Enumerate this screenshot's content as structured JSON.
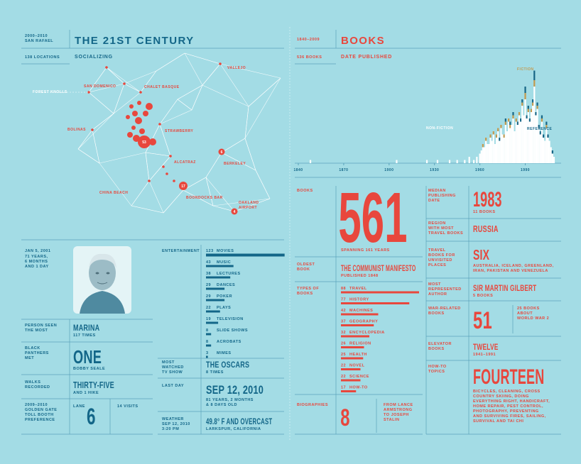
{
  "header_left": {
    "dates": "2000–2010",
    "place": "SAN RAFAEL",
    "title": "THE 21ST CENTURY"
  },
  "map": {
    "locations": "138 LOCATIONS",
    "title": "SOCIALIZING",
    "places": [
      [
        "VALLEJO"
      ],
      [
        "SAN DOMENICO"
      ],
      [
        "CHALET BASQUE"
      ],
      [
        "FOREST KNOLLS"
      ],
      [
        "BOLINAS"
      ],
      [
        "STRAWBERRY"
      ],
      [
        "ALCATRAZ"
      ],
      [
        "BERKELEY"
      ],
      [
        "CHINA BEACH"
      ],
      [
        "BOONDOCKS BAR"
      ],
      [
        "OAKLAND",
        "AIRPORT"
      ]
    ],
    "bubbles": [
      53,
      17,
      6,
      4
    ]
  },
  "profile": {
    "date": "JAN 5, 2001",
    "age": [
      "71 YEARS,",
      "6 MONTHS",
      "AND 1 DAY"
    ]
  },
  "person": {
    "label": [
      "PERSON SEEN",
      "THE MOST"
    ],
    "value": "MARINA",
    "detail": "117 TIMES"
  },
  "panthers": {
    "label": [
      "BLACK",
      "PANTHERS",
      "MET"
    ],
    "value": "ONE",
    "detail": "BOBBY SEALE"
  },
  "walks": {
    "label": [
      "WALKS",
      "RECORDED"
    ],
    "value": "THIRTY-FIVE",
    "detail": "AND 1 HIKE"
  },
  "toll": {
    "label": [
      "2009–2010",
      "GOLDEN GATE",
      "TOLL BOOTH",
      "PREFERENCE"
    ],
    "lane_label": "LANE",
    "value": 6,
    "detail": "14 VISITS"
  },
  "entertainment": {
    "label": "ENTERTAINMENT",
    "items": [
      {
        "count": 123,
        "name": "MOVIES"
      },
      {
        "count": 43,
        "name": "MUSIC"
      },
      {
        "count": 38,
        "name": "LECTURES"
      },
      {
        "count": 29,
        "name": "DANCES"
      },
      {
        "count": 29,
        "name": "POKER"
      },
      {
        "count": 22,
        "name": "PLAYS"
      },
      {
        "count": 19,
        "name": "TELEVISION"
      },
      {
        "count": 8,
        "name": "SLIDE SHOWS"
      },
      {
        "count": 8,
        "name": "ACROBATS"
      },
      {
        "count": 3,
        "name": "MIMES"
      }
    ]
  },
  "tv": {
    "label": [
      "MOST",
      "WATCHED",
      "TV SHOW"
    ],
    "value": "THE OSCARS",
    "detail": "8 TIMES"
  },
  "last_day": {
    "label": [
      "LAST DAY"
    ],
    "value": "SEP 12, 2010",
    "detail": [
      "81 YEARS, 2 MONTHS",
      "& 8 DAYS OLD"
    ]
  },
  "weather": {
    "label": [
      "WEATHER",
      "SEP 12, 2010",
      "3:20 PM"
    ],
    "value": "49.8° F AND OVERCAST",
    "detail": "LARKSPUR, CALIFORNIA"
  },
  "header_right": {
    "dates": "1840–2009",
    "title": "BOOKS"
  },
  "published": {
    "count_label": "536 BOOKS",
    "title": "DATE PUBLISHED",
    "xlim": [
      1840,
      2009
    ],
    "xticks": [
      1840,
      1870,
      1900,
      1930,
      1960,
      1990
    ],
    "x": [
      1848,
      1905,
      1925,
      1932,
      1940,
      1945,
      1950,
      1953,
      1956,
      1958,
      1960,
      1961,
      1962,
      1963,
      1964,
      1965,
      1966,
      1967,
      1968,
      1969,
      1970,
      1971,
      1972,
      1973,
      1974,
      1975,
      1976,
      1977,
      1978,
      1979,
      1980,
      1981,
      1982,
      1983,
      1984,
      1985,
      1986,
      1987,
      1988,
      1989,
      1990,
      1991,
      1992,
      1993,
      1994,
      1995,
      1996,
      1997,
      1998,
      1999,
      2000,
      2001,
      2002,
      2003,
      2004,
      2005,
      2006,
      2007,
      2008,
      2009
    ],
    "series": [
      {
        "name": "NON-FICTION",
        "color": "#ffffff",
        "values": [
          1,
          1,
          1,
          1,
          1,
          1,
          1,
          2,
          1,
          2,
          3,
          4,
          5,
          5,
          7,
          6,
          6,
          8,
          7,
          9,
          6,
          8,
          10,
          7,
          11,
          9,
          8,
          12,
          10,
          13,
          11,
          12,
          14,
          10,
          13,
          12,
          15,
          13,
          18,
          15,
          20,
          14,
          16,
          13,
          16,
          18,
          24,
          15,
          17,
          11,
          9,
          13,
          8,
          7,
          11,
          8,
          7,
          5,
          3,
          2
        ]
      },
      {
        "name": "FICTION",
        "color": "#c39a4e",
        "values": [
          0,
          0,
          0,
          0,
          0,
          0,
          0,
          0,
          0,
          0,
          0,
          0,
          1,
          0,
          1,
          0,
          0,
          1,
          0,
          1,
          0,
          1,
          1,
          0,
          1,
          0,
          1,
          1,
          0,
          1,
          1,
          0,
          1,
          0,
          1,
          0,
          1,
          0,
          1,
          0,
          2,
          0,
          1,
          0,
          1,
          1,
          2,
          0,
          1,
          0,
          0,
          1,
          0,
          0,
          1,
          0,
          0,
          0,
          0,
          0
        ]
      },
      {
        "name": "REFERENCE",
        "color": "#176585",
        "values": [
          0,
          0,
          0,
          0,
          0,
          0,
          0,
          0,
          0,
          0,
          0,
          0,
          0,
          0,
          0,
          0,
          0,
          0,
          0,
          0,
          0,
          0,
          0,
          1,
          0,
          0,
          0,
          1,
          0,
          0,
          1,
          0,
          1,
          0,
          0,
          1,
          0,
          1,
          1,
          0,
          2,
          1,
          1,
          1,
          0,
          1,
          3,
          1,
          1,
          1,
          1,
          1,
          1,
          0,
          1,
          1,
          0,
          0,
          1,
          0
        ]
      }
    ]
  },
  "books": {
    "label": [
      "BOOKS"
    ],
    "value": 561,
    "detail": "SPANNING 161 YEARS"
  },
  "oldest": {
    "label": [
      "OLDEST",
      "BOOK"
    ],
    "value": "THE COMMUNIST MANIFESTO",
    "detail": "PUBLISHED 1848"
  },
  "types": {
    "label": [
      "TYPES OF",
      "BOOKS"
    ],
    "items": [
      {
        "count": 88,
        "name": "TRAVEL"
      },
      {
        "count": 77,
        "name": "HISTORY"
      },
      {
        "count": 42,
        "name": "MACHINES"
      },
      {
        "count": 37,
        "name": "GEOGRAPHY"
      },
      {
        "count": 32,
        "name": "ENCYCLOPEDIA"
      },
      {
        "count": 26,
        "name": "RELIGION"
      },
      {
        "count": 25,
        "name": "HEALTH"
      },
      {
        "count": 22,
        "name": "NOVEL"
      },
      {
        "count": 22,
        "name": "SCIENCE"
      },
      {
        "count": 17,
        "name": "HOW-TO"
      }
    ]
  },
  "biographies": {
    "label": [
      "BIOGRAPHIES"
    ],
    "value": 8,
    "detail": [
      "FROM LANCE",
      "ARMSTRONG",
      "TO JOSEPH",
      "STALIN"
    ]
  },
  "median": {
    "label": [
      "MEDIAN",
      "PUBLISHING",
      "DATE"
    ],
    "value": 1983,
    "detail": "11 BOOKS"
  },
  "region": {
    "label": [
      "REGION",
      "WITH MOST",
      "TRAVEL BOOKS"
    ],
    "value": "RUSSIA"
  },
  "unvisited": {
    "label": [
      "TRAVEL",
      "BOOKS FOR",
      "UNVISITED",
      "PLACES"
    ],
    "value": "SIX",
    "detail": [
      "AUSTRALIA, ICELAND, GREENLAND,",
      "IRAN, PAKISTAN AND VENEZUELA"
    ]
  },
  "author": {
    "label": [
      "MOST",
      "REPRESENTED",
      "AUTHOR"
    ],
    "value": "SIR MARTIN GILBERT",
    "detail": "5 BOOKS"
  },
  "war": {
    "label": [
      "WAR-RELATED",
      "BOOKS"
    ],
    "value": 51,
    "detail": [
      "25 BOOKS",
      "ABOUT",
      "WORLD WAR 2"
    ]
  },
  "elevator": {
    "label": [
      "ELEVATOR",
      "BOOKS"
    ],
    "value": "TWELVE",
    "detail": "1941–1991"
  },
  "howto": {
    "label": [
      "HOW-TO",
      "TOPICS"
    ],
    "value": "FOURTEEN",
    "detail": [
      "BICYCLES, CLEANING, CROSS",
      "COUNTRY SKIING, DOING",
      "EVERYTHING RIGHT, HANDICRAFT,",
      "HOME REPAIR, PEST CONTROL,",
      "PHOTOGRAPHY, PREVENTING",
      "AND SURVIVING FIRES, SAILING,",
      "SURVIVAL AND TAI CHI"
    ]
  }
}
